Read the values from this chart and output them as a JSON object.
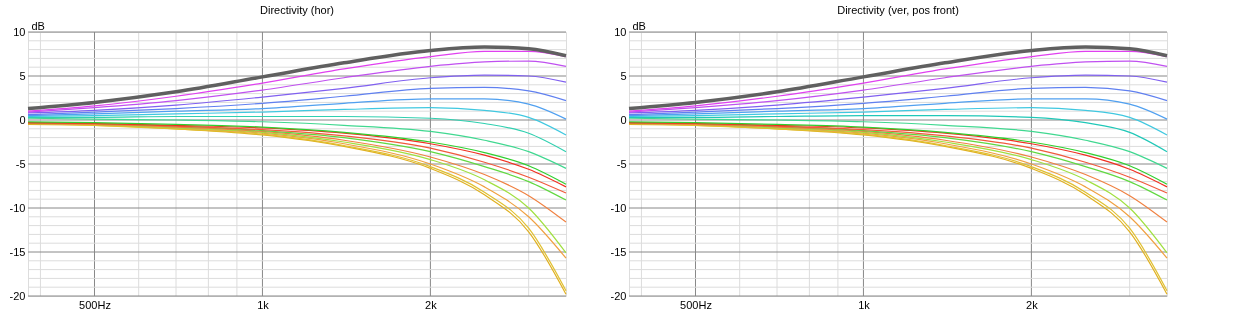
{
  "chart_data": [
    {
      "type": "line",
      "title": "Directivity (hor)",
      "ylabel": "dB",
      "log": "x",
      "grid": true,
      "xlim": [
        380,
        3500
      ],
      "ylim": [
        -20,
        10
      ],
      "xticks": [
        {
          "value": 400,
          "label": null
        },
        {
          "value": 500,
          "label": "500Hz"
        },
        {
          "value": 600,
          "label": null
        },
        {
          "value": 700,
          "label": null
        },
        {
          "value": 800,
          "label": null
        },
        {
          "value": 900,
          "label": null
        },
        {
          "value": 1000,
          "label": "1k"
        },
        {
          "value": 2000,
          "label": "2k"
        },
        {
          "value": 3000,
          "label": null
        }
      ],
      "yticks": [
        -20,
        {
          "value": -19,
          "label": null
        },
        {
          "value": -18,
          "label": null
        },
        {
          "value": -17,
          "label": null
        },
        {
          "value": -16,
          "label": null
        },
        -15,
        {
          "value": -14,
          "label": null
        },
        {
          "value": -13,
          "label": null
        },
        {
          "value": -12,
          "label": null
        },
        {
          "value": -11,
          "label": null
        },
        -10,
        {
          "value": -9,
          "label": null
        },
        {
          "value": -8,
          "label": null
        },
        {
          "value": -7,
          "label": null
        },
        {
          "value": -6,
          "label": null
        },
        -5,
        {
          "value": -4,
          "label": null
        },
        {
          "value": -3,
          "label": null
        },
        {
          "value": -2,
          "label": null
        },
        {
          "value": -1,
          "label": null
        },
        0,
        {
          "value": 1,
          "label": null
        },
        {
          "value": 2,
          "label": null
        },
        {
          "value": 3,
          "label": null
        },
        {
          "value": 4,
          "label": null
        },
        5,
        {
          "value": 6,
          "label": null
        },
        {
          "value": 7,
          "label": null
        },
        {
          "value": 8,
          "label": null
        },
        {
          "value": 9,
          "label": null
        },
        10
      ],
      "x": [
        380,
        500,
        700,
        1000,
        1400,
        2000,
        2500,
        3000,
        3500
      ],
      "series": [
        {
          "color": "#606060",
          "values": [
            1.3,
            2.0,
            3.2,
            4.9,
            6.5,
            7.9,
            8.3,
            8.1,
            7.3
          ]
        },
        {
          "color": "#e040f0",
          "values": [
            1.0,
            1.6,
            2.7,
            4.2,
            5.8,
            7.2,
            7.8,
            7.8,
            7.2
          ]
        },
        {
          "color": "#c050f0",
          "values": [
            0.9,
            1.4,
            2.2,
            3.4,
            4.8,
            6.1,
            6.6,
            6.7,
            6.1
          ]
        },
        {
          "color": "#8060f0",
          "values": [
            0.8,
            1.1,
            1.7,
            2.6,
            3.6,
            4.8,
            5.1,
            5.0,
            4.3
          ]
        },
        {
          "color": "#6080f0",
          "values": [
            0.6,
            0.9,
            1.3,
            1.9,
            2.7,
            3.6,
            3.7,
            3.3,
            2.2
          ]
        },
        {
          "color": "#50a0f0",
          "values": [
            0.5,
            0.7,
            1.0,
            1.3,
            1.9,
            2.4,
            2.4,
            1.8,
            0.1
          ]
        },
        {
          "color": "#40c8e0",
          "values": [
            0.4,
            0.5,
            0.7,
            0.9,
            1.2,
            1.4,
            1.1,
            0.3,
            -1.7
          ]
        },
        {
          "color": "#30d0b0",
          "values": [
            0.3,
            0.3,
            0.4,
            0.4,
            0.4,
            0.2,
            -0.4,
            -1.5,
            -3.6
          ]
        },
        {
          "color": "#40d890",
          "values": [
            0.2,
            0.1,
            0.0,
            -0.2,
            -0.6,
            -1.3,
            -2.3,
            -3.6,
            -5.5
          ]
        },
        {
          "color": "#30d030",
          "values": [
            -0.2,
            -0.3,
            -0.5,
            -0.8,
            -1.4,
            -2.5,
            -3.7,
            -5.2,
            -7.3
          ]
        },
        {
          "color": "#f03020",
          "values": [
            -0.3,
            -0.4,
            -0.6,
            -0.9,
            -1.5,
            -2.7,
            -4.0,
            -5.6,
            -7.6
          ]
        },
        {
          "color": "#f05a3c",
          "values": [
            -0.3,
            -0.4,
            -0.7,
            -1.1,
            -1.8,
            -3.2,
            -4.8,
            -6.5,
            -8.3
          ]
        },
        {
          "color": "#60d840",
          "values": [
            -0.3,
            -0.4,
            -0.7,
            -1.2,
            -2.0,
            -3.6,
            -5.3,
            -7.0,
            -9.1
          ]
        },
        {
          "color": "#f08040",
          "values": [
            -0.4,
            -0.5,
            -0.8,
            -1.3,
            -2.3,
            -4.2,
            -6.2,
            -8.6,
            -11.6
          ]
        },
        {
          "color": "#a0e040",
          "values": [
            -0.4,
            -0.5,
            -0.9,
            -1.4,
            -2.5,
            -4.5,
            -6.8,
            -10.0,
            -15.1
          ]
        },
        {
          "color": "#f0a040",
          "values": [
            -0.4,
            -0.5,
            -0.9,
            -1.5,
            -2.7,
            -5.0,
            -7.6,
            -11.0,
            -15.7
          ]
        },
        {
          "color": "#e0c030",
          "values": [
            -0.4,
            -0.6,
            -1.0,
            -1.6,
            -2.9,
            -5.3,
            -8.2,
            -12.3,
            -19.4
          ]
        },
        {
          "color": "#e0b020",
          "values": [
            -0.5,
            -0.6,
            -1.0,
            -1.7,
            -3.0,
            -5.5,
            -8.5,
            -12.7,
            -19.8
          ]
        }
      ]
    },
    {
      "type": "line",
      "title": "Directivity (ver, pos front)",
      "ylabel": "dB",
      "log": "x",
      "grid": true,
      "xlim": [
        380,
        3500
      ],
      "ylim": [
        -20,
        10
      ],
      "xticks": [
        {
          "value": 400,
          "label": null
        },
        {
          "value": 500,
          "label": "500Hz"
        },
        {
          "value": 600,
          "label": null
        },
        {
          "value": 700,
          "label": null
        },
        {
          "value": 800,
          "label": null
        },
        {
          "value": 900,
          "label": null
        },
        {
          "value": 1000,
          "label": "1k"
        },
        {
          "value": 2000,
          "label": "2k"
        },
        {
          "value": 3000,
          "label": null
        }
      ],
      "yticks": [
        -20,
        {
          "value": -19,
          "label": null
        },
        {
          "value": -18,
          "label": null
        },
        {
          "value": -17,
          "label": null
        },
        {
          "value": -16,
          "label": null
        },
        -15,
        {
          "value": -14,
          "label": null
        },
        {
          "value": -13,
          "label": null
        },
        {
          "value": -12,
          "label": null
        },
        {
          "value": -11,
          "label": null
        },
        -10,
        {
          "value": -9,
          "label": null
        },
        {
          "value": -8,
          "label": null
        },
        {
          "value": -7,
          "label": null
        },
        {
          "value": -6,
          "label": null
        },
        -5,
        {
          "value": -4,
          "label": null
        },
        {
          "value": -3,
          "label": null
        },
        {
          "value": -2,
          "label": null
        },
        {
          "value": -1,
          "label": null
        },
        0,
        {
          "value": 1,
          "label": null
        },
        {
          "value": 2,
          "label": null
        },
        {
          "value": 3,
          "label": null
        },
        {
          "value": 4,
          "label": null
        },
        5,
        {
          "value": 6,
          "label": null
        },
        {
          "value": 7,
          "label": null
        },
        {
          "value": 8,
          "label": null
        },
        {
          "value": 9,
          "label": null
        },
        10
      ],
      "x": [
        380,
        500,
        700,
        1000,
        1400,
        2000,
        2500,
        3000,
        3500
      ],
      "series": [
        {
          "color": "#606060",
          "values": [
            1.3,
            2.0,
            3.2,
            4.9,
            6.5,
            7.9,
            8.3,
            8.1,
            7.3
          ]
        },
        {
          "color": "#e040f0",
          "values": [
            1.0,
            1.6,
            2.7,
            4.2,
            5.8,
            7.2,
            7.8,
            7.8,
            7.2
          ]
        },
        {
          "color": "#c050f0",
          "values": [
            0.9,
            1.4,
            2.2,
            3.4,
            4.8,
            6.1,
            6.6,
            6.7,
            6.1
          ]
        },
        {
          "color": "#8060f0",
          "values": [
            0.8,
            1.1,
            1.7,
            2.6,
            3.6,
            4.8,
            5.1,
            5.0,
            4.3
          ]
        },
        {
          "color": "#6080f0",
          "values": [
            0.6,
            0.9,
            1.3,
            1.9,
            2.7,
            3.6,
            3.7,
            3.3,
            2.2
          ]
        },
        {
          "color": "#50a0f0",
          "values": [
            0.5,
            0.7,
            1.0,
            1.3,
            1.9,
            2.4,
            2.4,
            1.8,
            0.1
          ]
        },
        {
          "color": "#40c8e0",
          "values": [
            0.4,
            0.5,
            0.7,
            0.9,
            1.2,
            1.4,
            1.1,
            0.3,
            -1.7
          ]
        },
        {
          "color": "#20c8b8",
          "values": [
            0.3,
            0.3,
            0.4,
            0.5,
            0.5,
            0.3,
            -0.3,
            -1.4,
            -3.6
          ]
        },
        {
          "color": "#40d890",
          "values": [
            0.2,
            0.1,
            0.0,
            -0.2,
            -0.6,
            -1.3,
            -2.3,
            -3.6,
            -5.5
          ]
        },
        {
          "color": "#30d030",
          "values": [
            -0.2,
            -0.3,
            -0.5,
            -0.8,
            -1.4,
            -2.5,
            -3.7,
            -5.2,
            -7.3
          ]
        },
        {
          "color": "#f03020",
          "values": [
            -0.3,
            -0.4,
            -0.6,
            -0.9,
            -1.5,
            -2.7,
            -4.0,
            -5.6,
            -7.6
          ]
        },
        {
          "color": "#f05a3c",
          "values": [
            -0.3,
            -0.4,
            -0.7,
            -1.1,
            -1.8,
            -3.2,
            -4.8,
            -6.5,
            -8.3
          ]
        },
        {
          "color": "#60d840",
          "values": [
            -0.3,
            -0.4,
            -0.7,
            -1.2,
            -2.0,
            -3.6,
            -5.3,
            -7.0,
            -9.1
          ]
        },
        {
          "color": "#f08040",
          "values": [
            -0.4,
            -0.5,
            -0.8,
            -1.3,
            -2.3,
            -4.2,
            -6.2,
            -8.6,
            -11.6
          ]
        },
        {
          "color": "#a0e040",
          "values": [
            -0.4,
            -0.5,
            -0.9,
            -1.4,
            -2.5,
            -4.5,
            -6.8,
            -10.0,
            -15.1
          ]
        },
        {
          "color": "#f0a040",
          "values": [
            -0.4,
            -0.5,
            -0.9,
            -1.5,
            -2.7,
            -5.0,
            -7.6,
            -11.0,
            -15.7
          ]
        },
        {
          "color": "#e0c030",
          "values": [
            -0.4,
            -0.6,
            -1.0,
            -1.6,
            -2.9,
            -5.3,
            -8.2,
            -12.3,
            -19.4
          ]
        },
        {
          "color": "#e0b020",
          "values": [
            -0.5,
            -0.6,
            -1.0,
            -1.7,
            -3.0,
            -5.5,
            -8.5,
            -12.7,
            -19.8
          ]
        }
      ]
    }
  ]
}
